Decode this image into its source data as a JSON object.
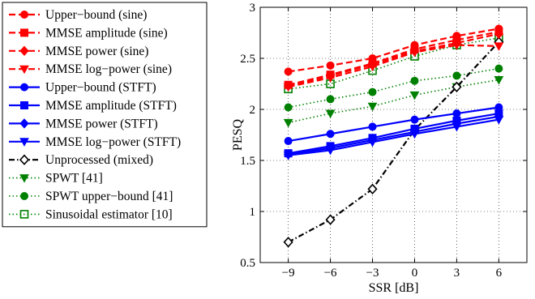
{
  "chart_data": {
    "type": "line",
    "xlabel": "SSR [dB]",
    "ylabel": "PESQ",
    "x": [
      -9,
      -6,
      -3,
      0,
      3,
      6
    ],
    "x_tick_labels": [
      "−9",
      "−6",
      "−3",
      "0",
      "3",
      "6"
    ],
    "xlim": [
      -11,
      8
    ],
    "ylim": [
      0.5,
      3
    ],
    "y_ticks": [
      0.5,
      1,
      1.5,
      2,
      2.5,
      3
    ],
    "y_tick_labels": [
      "0.5",
      "1",
      "1.5",
      "2",
      "2.5",
      "3"
    ],
    "grid": true,
    "legend_position": "outside-left",
    "series": [
      {
        "name": "Upper−bound (sine)",
        "color": "#ff0000",
        "dash": "dashed",
        "marker": "circle",
        "values": [
          2.37,
          2.43,
          2.5,
          2.63,
          2.72,
          2.79
        ]
      },
      {
        "name": "MMSE amplitude (sine)",
        "color": "#ff0000",
        "dash": "dashed",
        "marker": "square",
        "values": [
          2.24,
          2.34,
          2.45,
          2.59,
          2.68,
          2.76
        ]
      },
      {
        "name": "MMSE power (sine)",
        "color": "#ff0000",
        "dash": "dashed",
        "marker": "diamond",
        "values": [
          2.23,
          2.33,
          2.44,
          2.57,
          2.65,
          2.74
        ]
      },
      {
        "name": "MMSE log−power (sine)",
        "color": "#ff0000",
        "dash": "dashed",
        "marker": "triangle-down",
        "values": [
          2.22,
          2.31,
          2.42,
          2.56,
          2.63,
          2.62
        ]
      },
      {
        "name": "Upper−bound (STFT)",
        "color": "#0000ff",
        "dash": "solid",
        "marker": "circle",
        "values": [
          1.69,
          1.76,
          1.83,
          1.9,
          1.96,
          2.02
        ]
      },
      {
        "name": "MMSE amplitude (STFT)",
        "color": "#0000ff",
        "dash": "solid",
        "marker": "square",
        "values": [
          1.57,
          1.64,
          1.72,
          1.81,
          1.89,
          1.96
        ]
      },
      {
        "name": "MMSE power (STFT)",
        "color": "#0000ff",
        "dash": "solid",
        "marker": "diamond",
        "values": [
          1.56,
          1.62,
          1.7,
          1.78,
          1.86,
          1.93
        ]
      },
      {
        "name": "MMSE log−power (STFT)",
        "color": "#0000ff",
        "dash": "solid",
        "marker": "triangle-down",
        "values": [
          1.55,
          1.6,
          1.68,
          1.76,
          1.83,
          1.9
        ]
      },
      {
        "name": "Unprocessed (mixed)",
        "color": "#000000",
        "dash": "dashdot",
        "marker": "diamond-open",
        "values": [
          0.7,
          0.92,
          1.22,
          1.8,
          2.22,
          2.66
        ]
      },
      {
        "name": "SPWT [41]",
        "color": "#008000",
        "dash": "dotted",
        "marker": "triangle-down",
        "values": [
          1.87,
          1.96,
          2.03,
          2.14,
          2.22,
          2.29
        ]
      },
      {
        "name": "SPWT upper−bound [41]",
        "color": "#008000",
        "dash": "dotted",
        "marker": "circle",
        "values": [
          2.02,
          2.1,
          2.17,
          2.28,
          2.33,
          2.4
        ]
      },
      {
        "name": "Sinusoidal estimator [10]",
        "color": "#008000",
        "dash": "dotted",
        "marker": "square-open",
        "values": [
          2.2,
          2.25,
          2.38,
          2.52,
          2.63,
          2.7
        ]
      }
    ]
  }
}
